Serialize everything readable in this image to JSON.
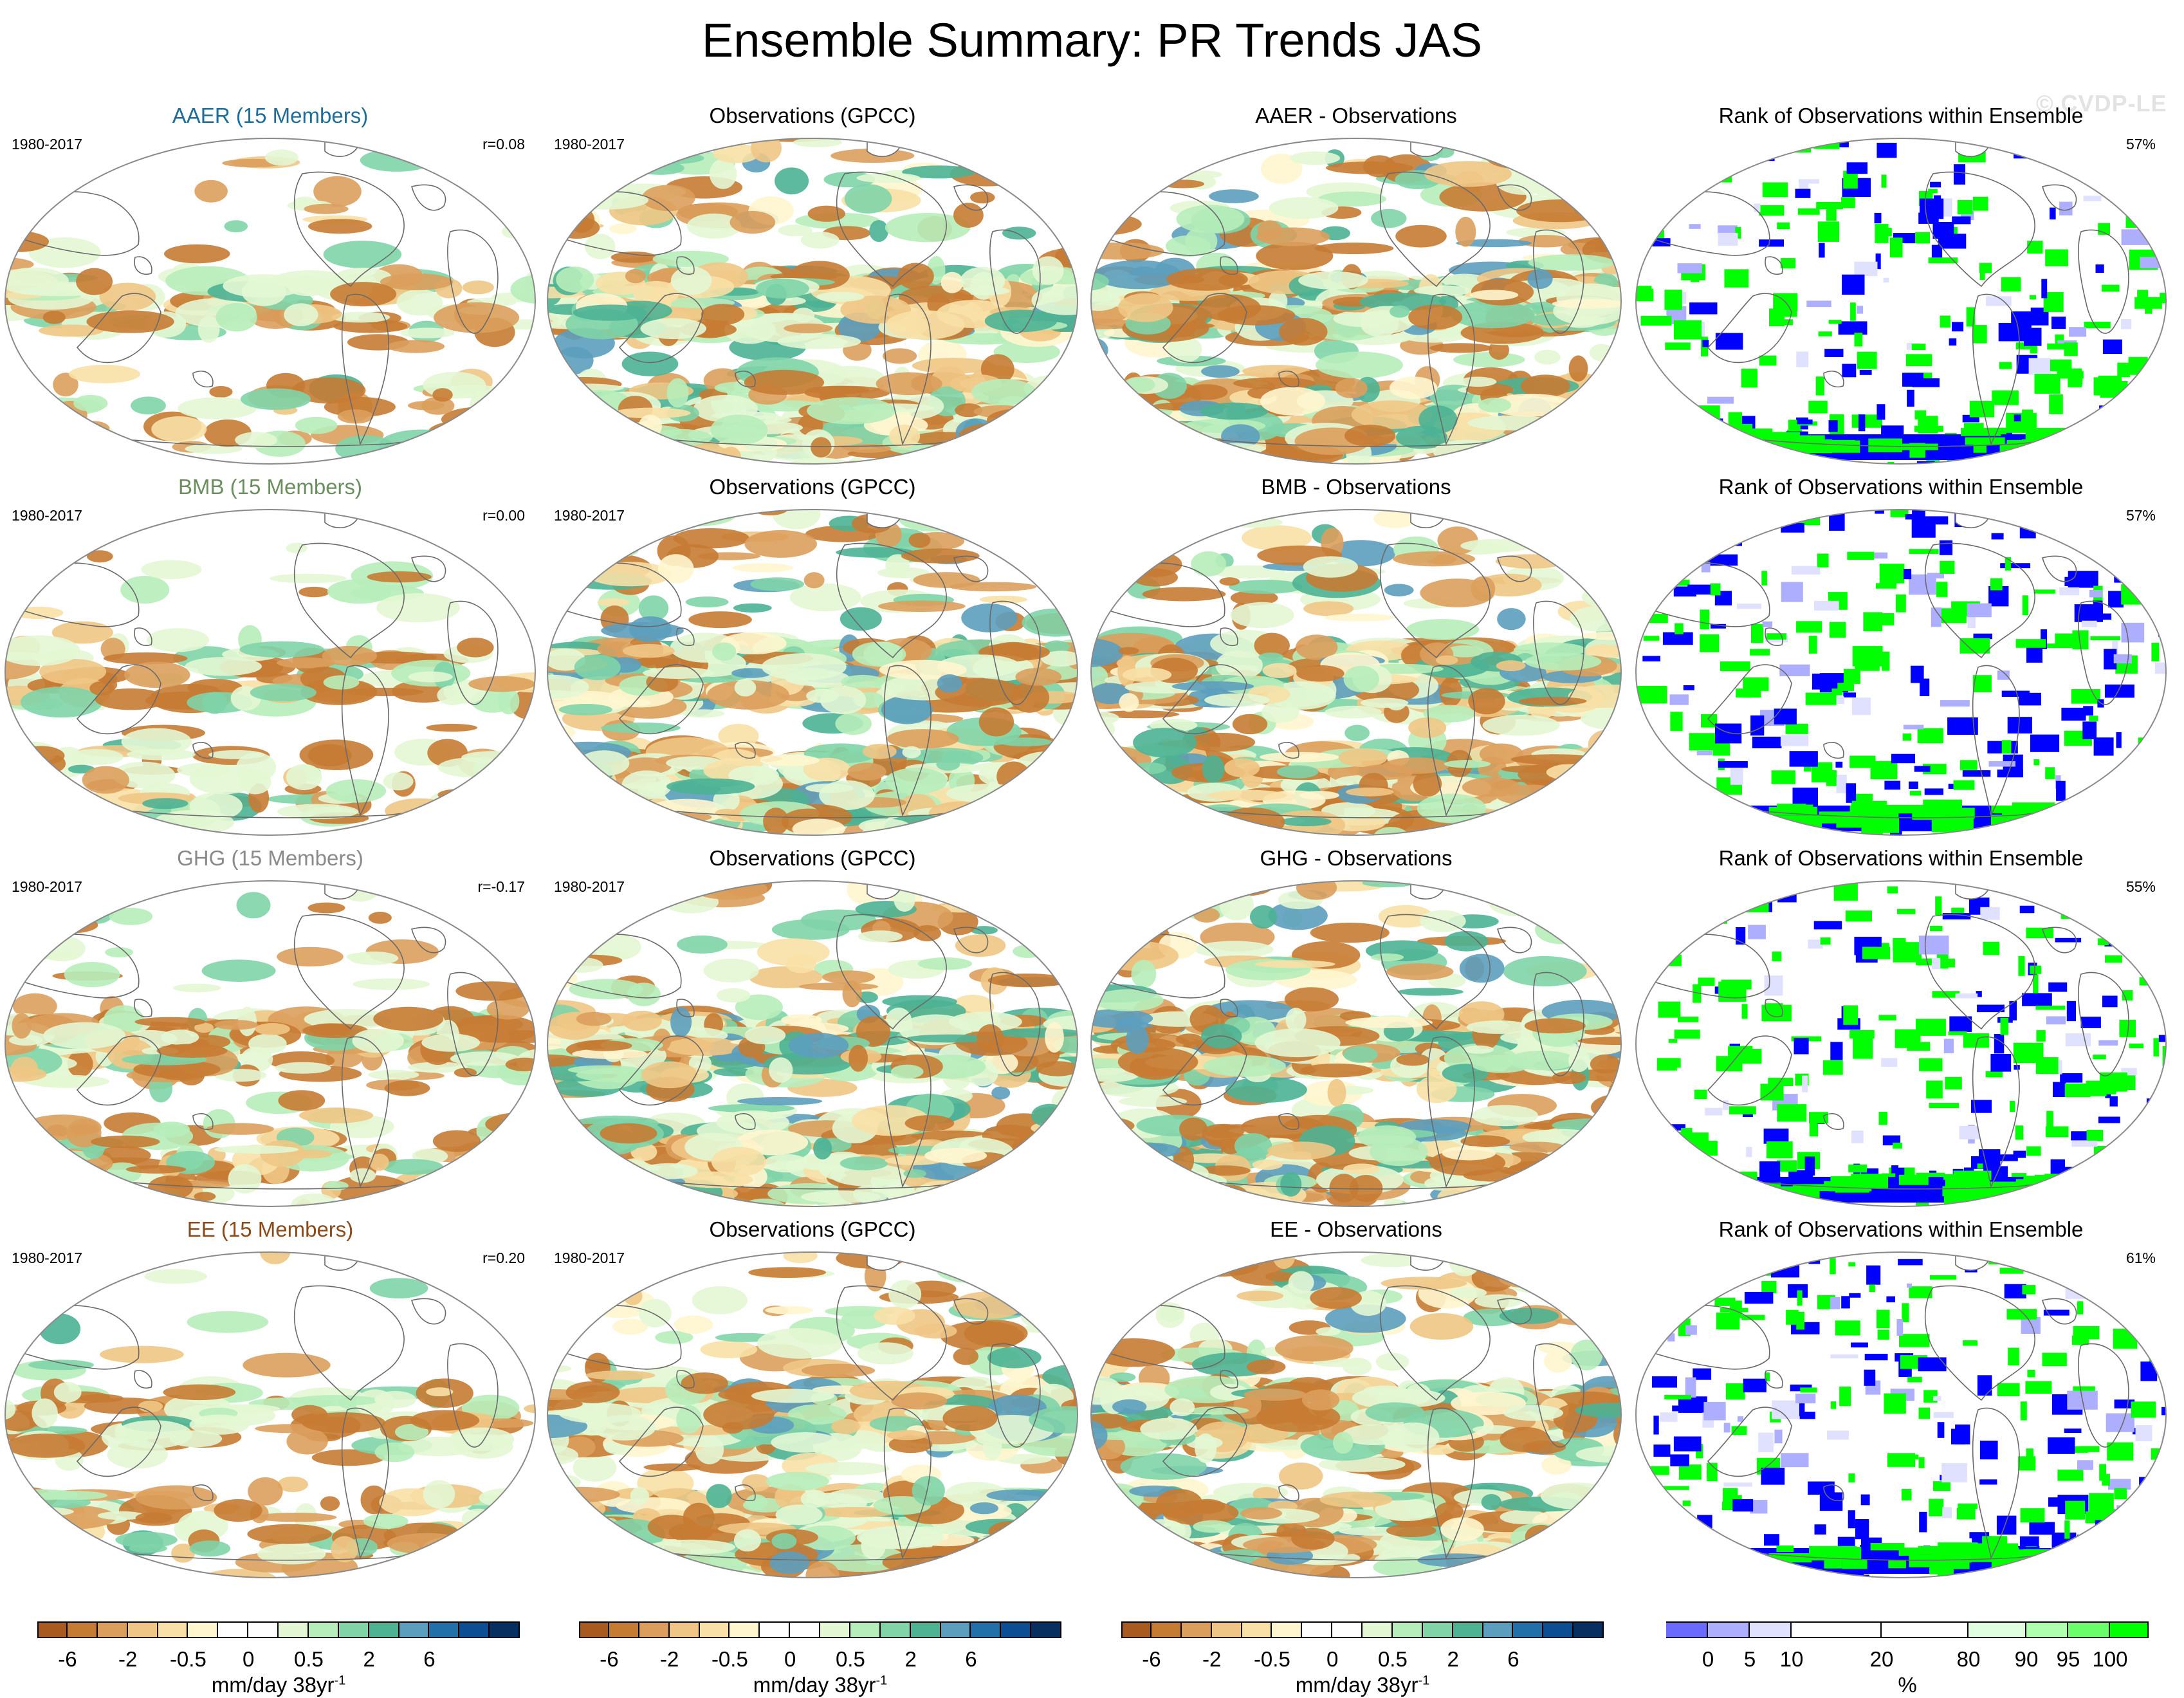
{
  "title": "Ensemble Summary: PR Trends JAS",
  "watermark": "© CVDP-LE",
  "colors": {
    "pr_scale": [
      "#a85a1f",
      "#c67b33",
      "#dc9e5c",
      "#efc685",
      "#f8e0a6",
      "#fff6cf",
      "#ffffff",
      "#ffffff",
      "#e3f7d4",
      "#b7edba",
      "#80d4a8",
      "#4db393",
      "#5c9ebe",
      "#2170aa",
      "#0b4e93",
      "#073060"
    ],
    "rank_scale": [
      "#0000ff",
      "#6a6aff",
      "#aeaeff",
      "#e0e0ff",
      "#ffffff",
      "#ffffff",
      "#e0ffe0",
      "#aeffae",
      "#6aff6a",
      "#00ff00"
    ],
    "title_aaer": "#1e6e99",
    "title_bmb": "#6b8f5e",
    "title_ghg": "#8a8a8a",
    "title_ee": "#8b4a1a"
  },
  "rows": [
    {
      "ensemble": {
        "title": "AAER (15 Members)",
        "period": "1980-2017",
        "corr": "r=0.08",
        "color_key": "title_aaer"
      },
      "obs": {
        "title": "Observations (GPCC)",
        "period": "1980-2017"
      },
      "diff": {
        "title": "AAER - Observations"
      },
      "rank": {
        "title": "Rank of Observations within Ensemble",
        "pct": "57%"
      }
    },
    {
      "ensemble": {
        "title": "BMB (15 Members)",
        "period": "1980-2017",
        "corr": "r=0.00",
        "color_key": "title_bmb"
      },
      "obs": {
        "title": "Observations (GPCC)",
        "period": "1980-2017"
      },
      "diff": {
        "title": "BMB - Observations"
      },
      "rank": {
        "title": "Rank of Observations within Ensemble",
        "pct": "57%"
      }
    },
    {
      "ensemble": {
        "title": "GHG (15 Members)",
        "period": "1980-2017",
        "corr": "r=-0.17",
        "color_key": "title_ghg"
      },
      "obs": {
        "title": "Observations (GPCC)",
        "period": "1980-2017"
      },
      "diff": {
        "title": "GHG - Observations"
      },
      "rank": {
        "title": "Rank of Observations within Ensemble",
        "pct": "55%"
      }
    },
    {
      "ensemble": {
        "title": "EE (15 Members)",
        "period": "1980-2017",
        "corr": "r=0.20",
        "color_key": "title_ee"
      },
      "obs": {
        "title": "Observations (GPCC)",
        "period": "1980-2017"
      },
      "diff": {
        "title": "EE - Observations"
      },
      "rank": {
        "title": "Rank of Observations within Ensemble",
        "pct": "61%"
      }
    }
  ],
  "colorbars": {
    "pr": {
      "labels": [
        "-6",
        "-2",
        "-0.5",
        "0",
        "0.5",
        "2",
        "6"
      ],
      "units": "mm/day 38yr",
      "units_sup": "-1"
    },
    "rank": {
      "labels": [
        "0",
        "5",
        "10",
        "20",
        "80",
        "90",
        "95",
        "100"
      ],
      "units": "%"
    }
  }
}
